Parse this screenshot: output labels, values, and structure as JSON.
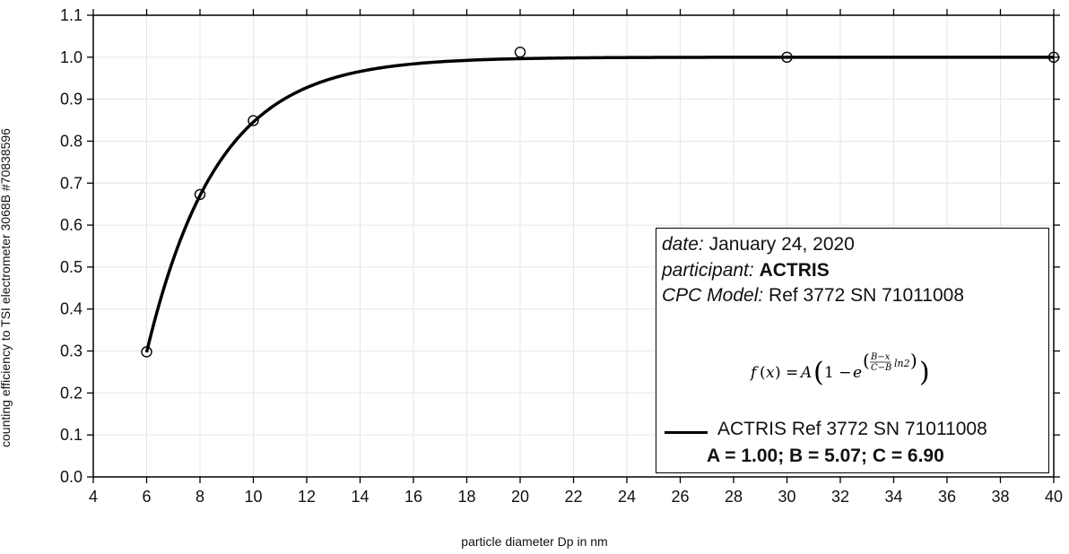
{
  "chart_data": {
    "type": "scatter",
    "xlabel": "particle diameter Dp in nm",
    "ylabel": "counting efficiency to TSI electrometer 3068B #70838596",
    "xlim": [
      4,
      40
    ],
    "ylim": [
      0.0,
      1.1
    ],
    "xticks": [
      "4",
      "6",
      "8",
      "10",
      "12",
      "14",
      "16",
      "18",
      "20",
      "22",
      "24",
      "26",
      "28",
      "30",
      "32",
      "34",
      "36",
      "38",
      "40"
    ],
    "yticks": [
      "0.0",
      "0.1",
      "0.2",
      "0.3",
      "0.4",
      "0.5",
      "0.6",
      "0.7",
      "0.8",
      "0.9",
      "1.0",
      "1.1"
    ],
    "grid": true,
    "points": [
      {
        "x": 6,
        "y": 0.298
      },
      {
        "x": 8,
        "y": 0.673
      },
      {
        "x": 10,
        "y": 0.849
      },
      {
        "x": 20,
        "y": 1.012
      },
      {
        "x": 30,
        "y": 1.0
      },
      {
        "x": 40,
        "y": 1.0
      }
    ],
    "fit": {
      "name": "ACTRIS Ref 3772 SN 71011008",
      "A": 1.0,
      "B": 5.07,
      "C": 6.9,
      "x_range": [
        6,
        40
      ]
    },
    "colors": {
      "line": "#000000",
      "grid": "#e6e6e6",
      "axis": "#000000"
    }
  },
  "info": {
    "date_key": "date:",
    "date_val": "January 24, 2020",
    "participant_key": "participant:",
    "participant_val": "ACTRIS",
    "model_key": "CPC Model:",
    "model_val": "Ref 3772 SN 71011008"
  },
  "legend": {
    "series": "ACTRIS Ref 3772 SN 71011008",
    "params": "A = 1.00; B = 5.07; C = 6.90"
  }
}
